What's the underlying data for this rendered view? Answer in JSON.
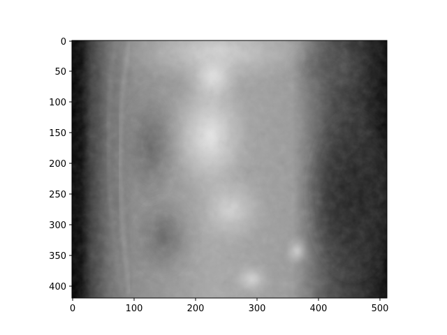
{
  "image": {
    "description_type": "grayscale radiograph (lateral abdominal X-ray) displayed with pixel-index axes",
    "colormap": "gray"
  },
  "axes": {
    "x_ticks": [
      "0",
      "100",
      "200",
      "300",
      "400",
      "500"
    ],
    "y_ticks": [
      "0",
      "50",
      "100",
      "150",
      "200",
      "250",
      "300",
      "350",
      "400"
    ],
    "xlim": [
      0,
      512
    ],
    "ylim": [
      420,
      0
    ]
  }
}
